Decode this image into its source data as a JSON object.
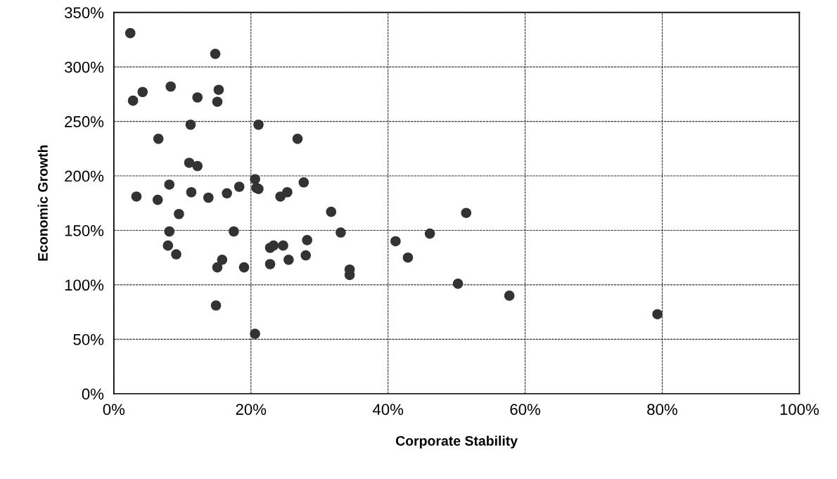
{
  "chart_data": {
    "type": "scatter",
    "xlabel": "Corporate Stability",
    "ylabel": "Economic Growth",
    "series": [
      {
        "color": "#333333",
        "x": [
          2.4,
          14.8,
          2.8,
          4.2,
          8.3,
          12.2,
          15.3,
          15.1,
          11.2,
          6.5,
          21.1,
          26.8,
          11.0,
          12.2,
          3.3,
          6.4,
          8.1,
          11.3,
          9.5,
          13.8,
          16.5,
          18.3,
          20.6,
          20.8,
          21.1,
          24.3,
          25.3,
          27.7,
          31.7,
          8.1,
          7.9,
          9.1,
          17.5,
          15.8,
          15.1,
          19.0,
          14.9,
          20.6,
          22.8,
          23.3,
          24.7,
          22.8,
          25.5,
          28.2,
          28.0,
          33.1,
          34.4,
          34.4,
          41.1,
          42.9,
          46.1,
          51.4,
          50.2,
          57.7,
          79.3
        ],
        "values": [
          331,
          312,
          269,
          277,
          282,
          272,
          279,
          268,
          247,
          234,
          247,
          234,
          212,
          209,
          181,
          178,
          192,
          185,
          165,
          180,
          184,
          190,
          197,
          189,
          188,
          181,
          185,
          194,
          167,
          149,
          136,
          128,
          149,
          123,
          116,
          116,
          81,
          55,
          134,
          136,
          136,
          119,
          123,
          141,
          127,
          148,
          114,
          109,
          140,
          125,
          147,
          166,
          101,
          90,
          73
        ]
      }
    ],
    "xlim": [
      0,
      100
    ],
    "ylim": [
      0,
      350
    ],
    "xticks": [
      {
        "value": 0,
        "label": "0%"
      },
      {
        "value": 20,
        "label": "20%"
      },
      {
        "value": 40,
        "label": "40%"
      },
      {
        "value": 60,
        "label": "60%"
      },
      {
        "value": 80,
        "label": "80%"
      },
      {
        "value": 100,
        "label": "100%"
      }
    ],
    "yticks": [
      {
        "value": 0,
        "label": "0%"
      },
      {
        "value": 50,
        "label": "50%"
      },
      {
        "value": 100,
        "label": "100%"
      },
      {
        "value": 150,
        "label": "150%"
      },
      {
        "value": 200,
        "label": "200%"
      },
      {
        "value": 250,
        "label": "250%"
      },
      {
        "value": 300,
        "label": "300%"
      },
      {
        "value": 350,
        "label": "350%"
      }
    ],
    "grid": true,
    "marker": "circle"
  }
}
